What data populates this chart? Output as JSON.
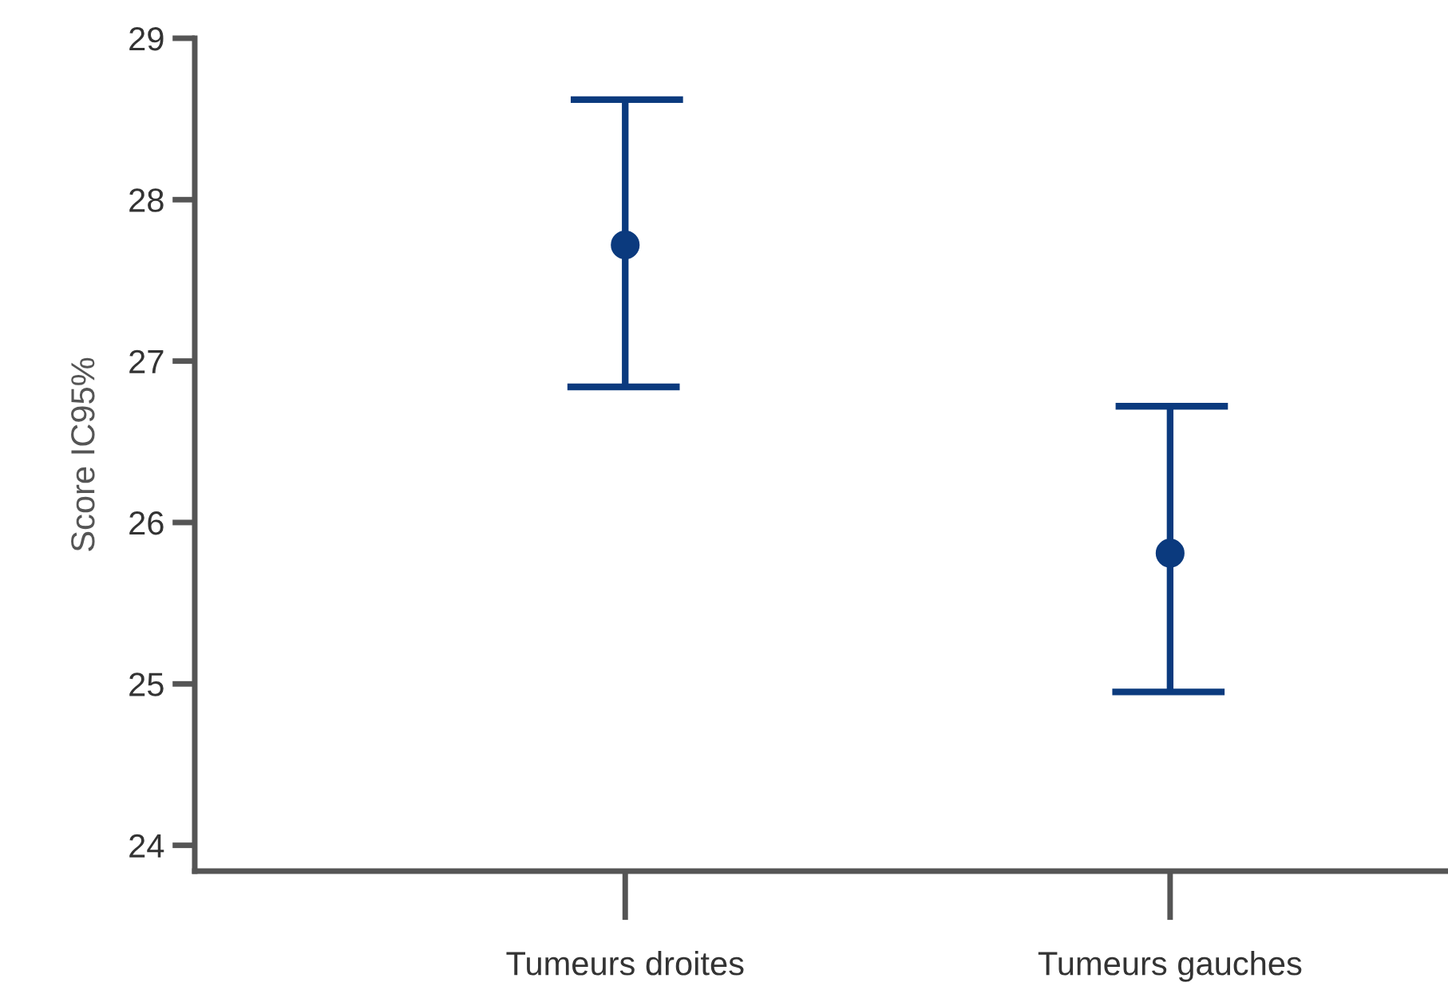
{
  "chart_data": {
    "type": "scatter",
    "ylabel": "Score IC95%",
    "categories": [
      "Tumeurs droites",
      "Tumeurs gauches"
    ],
    "series": [
      {
        "color": "#0b3a7e",
        "values": [
          27.72,
          25.81
        ],
        "errors": [
          [
            26.84,
            28.62
          ],
          [
            24.95,
            26.72
          ]
        ]
      }
    ],
    "ylim": [
      23.84,
      29
    ],
    "yticks": [
      24,
      25,
      26,
      27,
      28,
      29
    ],
    "grid": false,
    "legend": false,
    "marker": "circle"
  }
}
